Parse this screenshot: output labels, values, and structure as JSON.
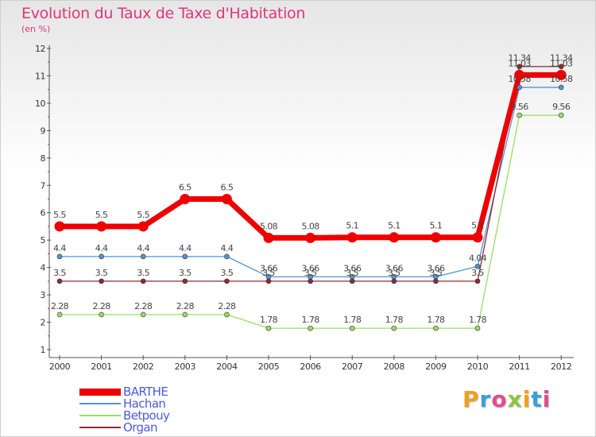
{
  "header": {
    "title": "Evolution du Taux de Taxe d'Habitation",
    "unit": "(en %)"
  },
  "logo": {
    "letters": [
      "P",
      "r",
      "o",
      "x",
      "i",
      "t",
      "i"
    ],
    "colors": [
      "#f0a020",
      "#3a9ee0",
      "#e54b8c",
      "#8cc63f",
      "#f0a020",
      "#3a9ee0",
      "#e54b8c"
    ]
  },
  "chart_data": {
    "type": "line",
    "title": "Evolution du Taux de Taxe d'Habitation",
    "ylabel": "(en %)",
    "xlabel": "",
    "x": [
      "2000",
      "2001",
      "2002",
      "2003",
      "2004",
      "2005",
      "2006",
      "2007",
      "2008",
      "2009",
      "2010",
      "2011",
      "2012"
    ],
    "ylim": [
      1,
      12
    ],
    "yticks": [
      "1",
      "2",
      "3",
      "4",
      "5",
      "6",
      "7",
      "8",
      "9",
      "10",
      "11",
      "12"
    ],
    "grid": false,
    "legend_position": "bottom-left",
    "series": [
      {
        "name": "BARTHE",
        "color": "#ee0000",
        "line_width": 7,
        "marker_r": 6.5,
        "values": [
          5.5,
          5.5,
          5.5,
          6.5,
          6.5,
          5.08,
          5.08,
          5.1,
          5.1,
          5.1,
          5.1,
          11.03,
          11.03
        ],
        "labels": [
          "5.5",
          "5.5",
          "5.5",
          "6.5",
          "6.5",
          "5.08",
          "5.08",
          "5.1",
          "5.1",
          "5.1",
          "5.1",
          "11.03",
          "11.03"
        ]
      },
      {
        "name": "Hachan",
        "color": "#4e96d2",
        "line_width": 1.3,
        "marker_r": 3,
        "values": [
          4.4,
          4.4,
          4.4,
          4.4,
          4.4,
          3.66,
          3.66,
          3.66,
          3.66,
          3.66,
          4.04,
          10.58,
          10.58
        ],
        "labels": [
          "4.4",
          "4.4",
          "4.4",
          "4.4",
          "4.4",
          "3.66",
          "3.66",
          "3.66",
          "3.66",
          "3.66",
          "4.04",
          "10.58",
          "10.58"
        ]
      },
      {
        "name": "Betpouy",
        "color": "#99dd66",
        "line_width": 1.3,
        "marker_r": 3,
        "values": [
          2.28,
          2.28,
          2.28,
          2.28,
          2.28,
          1.78,
          1.78,
          1.78,
          1.78,
          1.78,
          1.78,
          9.56,
          9.56
        ],
        "labels": [
          "2.28",
          "2.28",
          "2.28",
          "2.28",
          "2.28",
          "1.78",
          "1.78",
          "1.78",
          "1.78",
          "1.78",
          "1.78",
          "9.56",
          "9.56"
        ]
      },
      {
        "name": "Organ",
        "color": "#8b2b36",
        "line_width": 1.3,
        "marker_r": 3,
        "values": [
          3.5,
          3.5,
          3.5,
          3.5,
          3.5,
          3.5,
          3.5,
          3.5,
          3.5,
          3.5,
          3.5,
          11.34,
          11.34
        ],
        "labels": [
          "3.5",
          "3.5",
          "3.5",
          "3.5",
          "3.5",
          "3.5",
          "3.5",
          "3.5",
          "3.5",
          "3.5",
          "3.5",
          "11.34",
          "11.34"
        ]
      }
    ]
  }
}
